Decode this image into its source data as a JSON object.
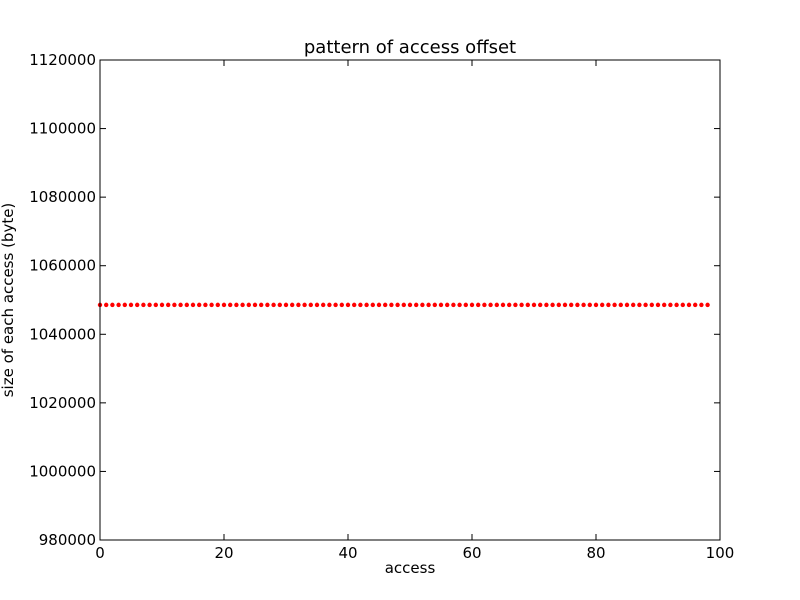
{
  "chart_data": {
    "type": "scatter",
    "title": "pattern of access offset",
    "xlabel": "access",
    "ylabel": "size of each access (byte)",
    "xlim": [
      0,
      100
    ],
    "ylim": [
      980000,
      1120000
    ],
    "xticks": [
      0,
      20,
      40,
      60,
      80,
      100
    ],
    "yticks": [
      980000,
      1000000,
      1020000,
      1040000,
      1060000,
      1080000,
      1100000,
      1120000
    ],
    "grid": false,
    "legend": "none",
    "marker_color": "#ff0000",
    "series": [
      {
        "x": [
          0,
          1,
          2,
          3,
          4,
          5,
          6,
          7,
          8,
          9,
          10,
          11,
          12,
          13,
          14,
          15,
          16,
          17,
          18,
          19,
          20,
          21,
          22,
          23,
          24,
          25,
          26,
          27,
          28,
          29,
          30,
          31,
          32,
          33,
          34,
          35,
          36,
          37,
          38,
          39,
          40,
          41,
          42,
          43,
          44,
          45,
          46,
          47,
          48,
          49,
          50,
          51,
          52,
          53,
          54,
          55,
          56,
          57,
          58,
          59,
          60,
          61,
          62,
          63,
          64,
          65,
          66,
          67,
          68,
          69,
          70,
          71,
          72,
          73,
          74,
          75,
          76,
          77,
          78,
          79,
          80,
          81,
          82,
          83,
          84,
          85,
          86,
          87,
          88,
          89,
          90,
          91,
          92,
          93,
          94,
          95,
          96,
          97,
          98
        ],
        "y": [
          1048576,
          1048576,
          1048576,
          1048576,
          1048576,
          1048576,
          1048576,
          1048576,
          1048576,
          1048576,
          1048576,
          1048576,
          1048576,
          1048576,
          1048576,
          1048576,
          1048576,
          1048576,
          1048576,
          1048576,
          1048576,
          1048576,
          1048576,
          1048576,
          1048576,
          1048576,
          1048576,
          1048576,
          1048576,
          1048576,
          1048576,
          1048576,
          1048576,
          1048576,
          1048576,
          1048576,
          1048576,
          1048576,
          1048576,
          1048576,
          1048576,
          1048576,
          1048576,
          1048576,
          1048576,
          1048576,
          1048576,
          1048576,
          1048576,
          1048576,
          1048576,
          1048576,
          1048576,
          1048576,
          1048576,
          1048576,
          1048576,
          1048576,
          1048576,
          1048576,
          1048576,
          1048576,
          1048576,
          1048576,
          1048576,
          1048576,
          1048576,
          1048576,
          1048576,
          1048576,
          1048576,
          1048576,
          1048576,
          1048576,
          1048576,
          1048576,
          1048576,
          1048576,
          1048576,
          1048576,
          1048576,
          1048576,
          1048576,
          1048576,
          1048576,
          1048576,
          1048576,
          1048576,
          1048576,
          1048576,
          1048576,
          1048576,
          1048576,
          1048576,
          1048576,
          1048576,
          1048576,
          1048576,
          1048576
        ]
      }
    ]
  }
}
